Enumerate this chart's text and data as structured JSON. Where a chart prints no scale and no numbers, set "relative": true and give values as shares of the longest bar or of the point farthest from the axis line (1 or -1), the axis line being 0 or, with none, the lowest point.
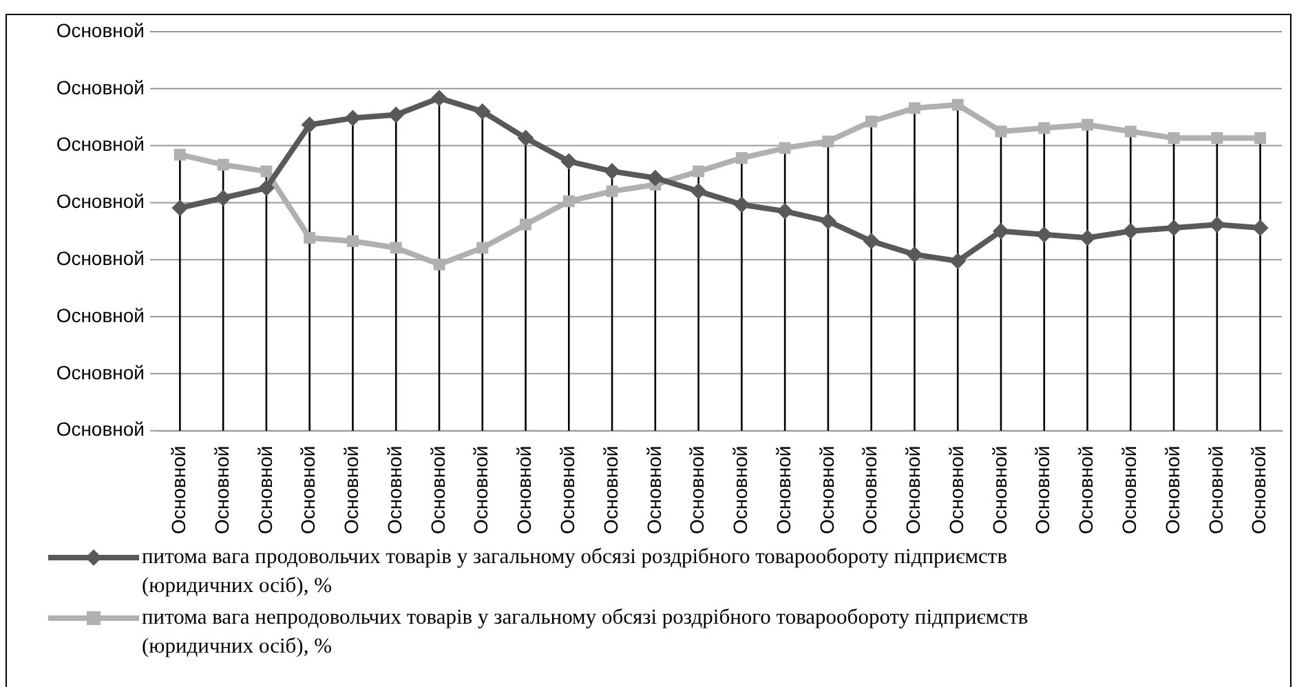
{
  "chart_data": {
    "type": "line",
    "relative": true,
    "categories": [
      "Основной",
      "Основной",
      "Основной",
      "Основной",
      "Основной",
      "Основной",
      "Основной",
      "Основной",
      "Основной",
      "Основной",
      "Основной",
      "Основной",
      "Основной",
      "Основной",
      "Основной",
      "Основной",
      "Основной",
      "Основной",
      "Основной",
      "Основной",
      "Основной",
      "Основной",
      "Основной",
      "Основной",
      "Основной",
      "Основной"
    ],
    "series": [
      {
        "name": "питома вага продовольчих товарів у загальному обсязі роздрібного товарообороту підприємств (юридичних осіб), %",
        "color": "#595959",
        "marker": "diamond",
        "values": [
          0.67,
          0.7,
          0.73,
          0.92,
          0.94,
          0.95,
          1,
          0.96,
          0.88,
          0.81,
          0.78,
          0.76,
          0.72,
          0.68,
          0.66,
          0.63,
          0.57,
          0.53,
          0.51,
          0.6,
          0.59,
          0.58,
          0.6,
          0.61,
          0.62,
          0.61
        ]
      },
      {
        "name": "питома вага непродовольчих товарів у загальному обсязі роздрібного товарообороту підприємств (юридичних осіб), %",
        "color": "#b0b0b0",
        "marker": "square",
        "values": [
          0.83,
          0.8,
          0.78,
          0.58,
          0.57,
          0.55,
          0.5,
          0.55,
          0.62,
          0.69,
          0.72,
          0.74,
          0.78,
          0.82,
          0.85,
          0.87,
          0.93,
          0.97,
          0.98,
          0.9,
          0.91,
          0.92,
          0.9,
          0.88,
          0.88,
          0.88
        ]
      }
    ],
    "annotations": [
      "Основной",
      "Основной",
      "Основной",
      "Основной",
      "Основной",
      "Основной",
      "Основной",
      "Основной"
    ],
    "grid": true,
    "legend": "bottom"
  }
}
